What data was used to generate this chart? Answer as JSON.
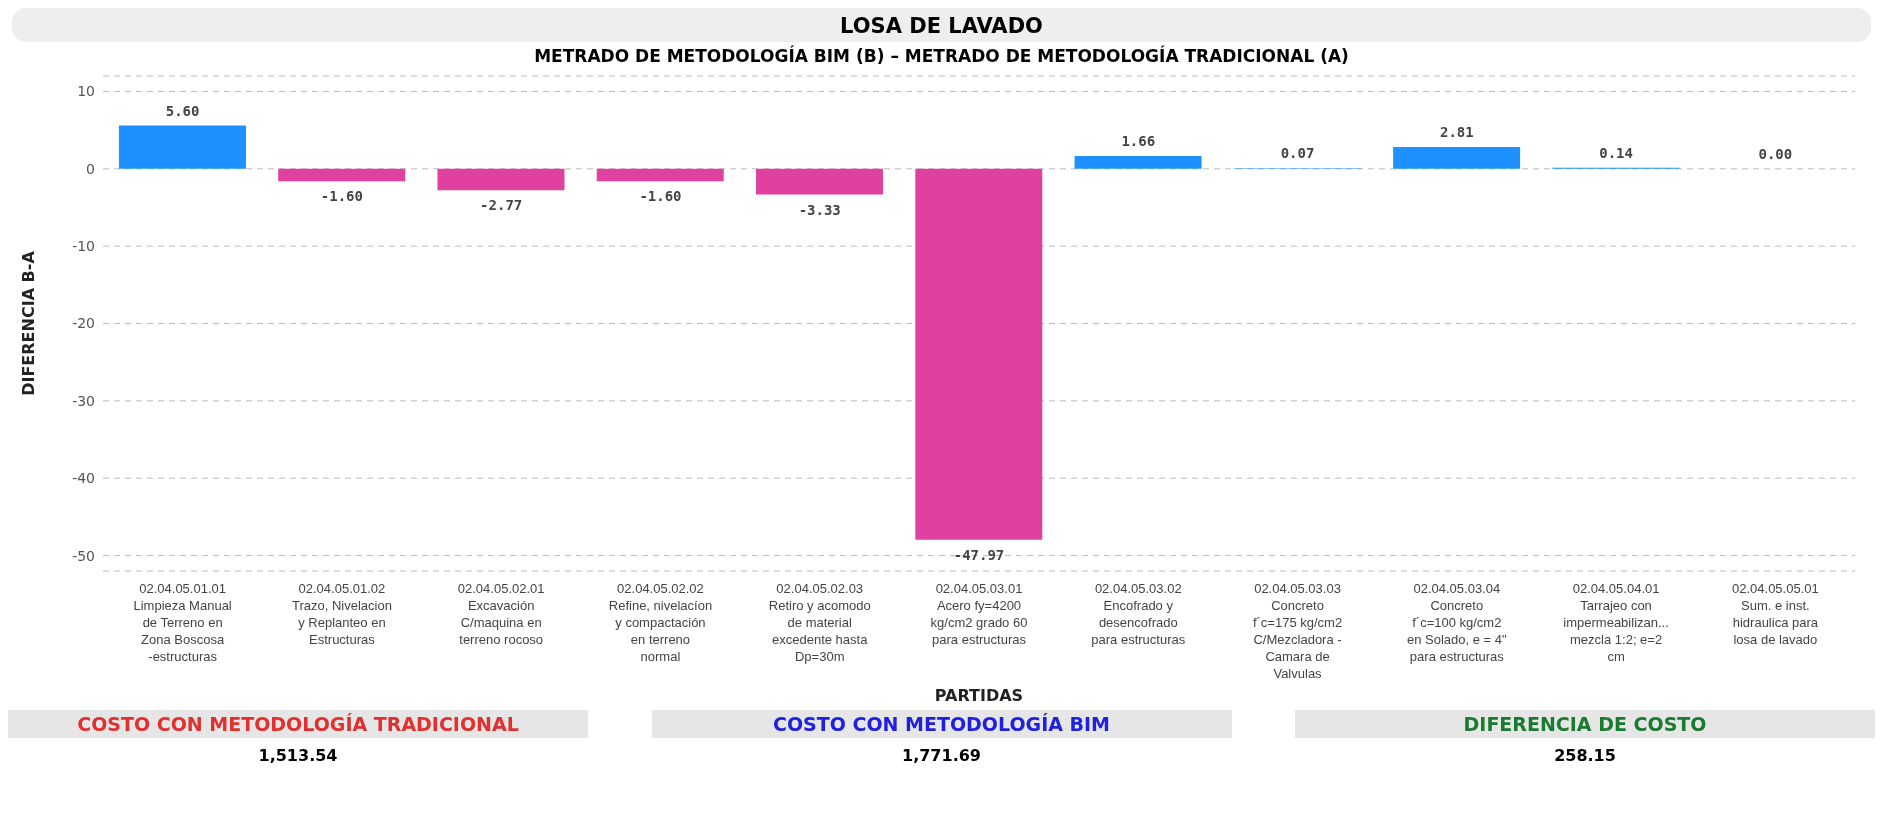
{
  "chart_data": {
    "type": "bar",
    "title": "LOSA DE LAVADO",
    "subtitle": "METRADO DE METODOLOGÍA BIM (B) – METRADO DE METODOLOGÍA TRADICIONAL (A)",
    "xlabel": "PARTIDAS",
    "ylabel": "DIFERENCIA B-A",
    "categories": [
      "02.04.05.01.01\nLimpieza Manual\nde Terreno en\nZona Boscosa\n-estructuras",
      "02.04.05.01.02\nTrazo, Nivelacion\ny Replanteo en\nEstructuras",
      "02.04.05.02.01\nExcavación\nC/maquina en\nterreno rocoso",
      "02.04.05.02.02\nRefine, nivelacíon\ny compactación\nen terreno\nnormal",
      "02.04.05.02.03\nRetiro y acomodo\nde material\nexcedente hasta\nDp=30m",
      "02.04.05.03.01\nAcero fy=4200\nkg/cm2 grado 60\npara estructuras",
      "02.04.05.03.02\nEncofrado y\ndesencofrado\npara estructuras",
      "02.04.05.03.03\nConcreto\nf´c=175 kg/cm2\nC/Mezcladora -\nCamara de\nValvulas",
      "02.04.05.03.04\nConcreto\nf´c=100 kg/cm2\nen Solado, e = 4\"\npara estructuras",
      "02.04.05.04.01\nTarrajeo con\nimpermeabilizan...\nmezcla 1:2; e=2\ncm",
      "02.04.05.05.01\nSum. e inst.\nhidraulica para\nlosa de lavado"
    ],
    "values": [
      5.6,
      -1.6,
      -2.77,
      -1.6,
      -3.33,
      -47.97,
      1.66,
      0.07,
      2.81,
      0.14,
      0.0
    ],
    "value_labels": [
      "5.60",
      "-1.60",
      "-2.77",
      "-1.60",
      "-3.33",
      "-47.97",
      "1.66",
      "0.07",
      "2.81",
      "0.14",
      "0.00"
    ],
    "colors": [
      "#1e90ff",
      "#e040a0",
      "#e040a0",
      "#e040a0",
      "#e040a0",
      "#e040a0",
      "#1e90ff",
      "#1e90ff",
      "#1e90ff",
      "#1e90ff",
      "#1e90ff"
    ],
    "ylim": [
      -52,
      12
    ],
    "yticks": [
      -50,
      -40,
      -30,
      -20,
      -10,
      0,
      10
    ],
    "grid": "y",
    "annotations": [
      "COSTO CON METODOLOGÍA TRADICIONAL",
      "1,513.54",
      "COSTO CON METODOLOGÍA BIM",
      "1,771.69",
      "DIFERENCIA DE COSTO",
      "258.15"
    ]
  }
}
